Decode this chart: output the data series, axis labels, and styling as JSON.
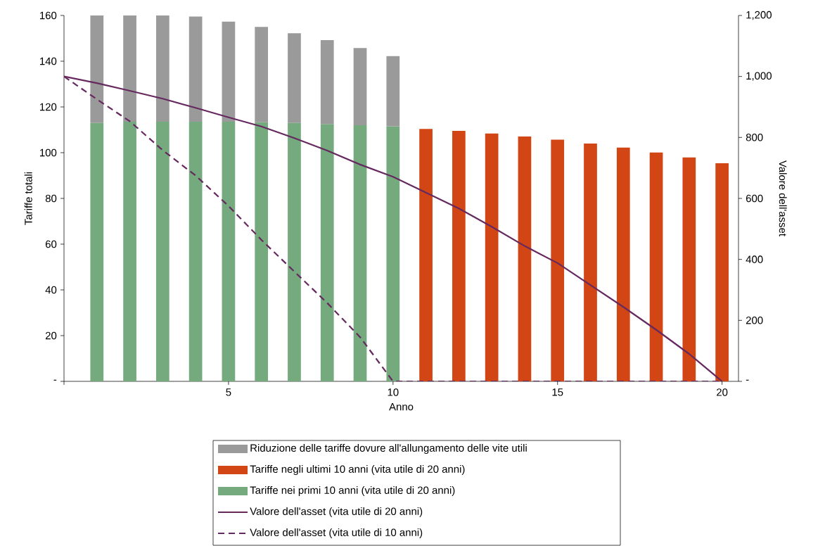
{
  "chart_data": {
    "type": "bar",
    "stacked": true,
    "xlabel": "Anno",
    "ylabel": "Tariffe totali",
    "y2label": "Valore dell'asset",
    "x": [
      1,
      2,
      3,
      4,
      5,
      6,
      7,
      8,
      9,
      10,
      11,
      12,
      13,
      14,
      15,
      16,
      17,
      18,
      19,
      20
    ],
    "xlim": [
      0,
      20.5
    ],
    "xticks": [
      {
        "value": 0,
        "label": null
      },
      5,
      10,
      15,
      20
    ],
    "ylim": [
      0,
      160
    ],
    "yticks": [
      {
        "value": 0,
        "label": "-"
      },
      20,
      40,
      60,
      80,
      100,
      120,
      140,
      160
    ],
    "y2lim": [
      0,
      1200
    ],
    "y2ticks": [
      {
        "value": 0,
        "label": "-"
      },
      200,
      400,
      600,
      800,
      {
        "value": 1000,
        "label": "1,000"
      },
      {
        "value": 1200,
        "label": "1,200"
      }
    ],
    "legend": "bottom",
    "series": [
      {
        "name": "Tariffe nei primi 10 anni (vita utile di 20 anni)",
        "color": "#75a97e",
        "values": [
          113,
          113.5,
          113.5,
          113.5,
          113.5,
          113.3,
          113,
          112.5,
          112,
          111.5,
          null,
          null,
          null,
          null,
          null,
          null,
          null,
          null,
          null,
          null
        ]
      },
      {
        "name": "Tariffe negli ultimi 10 anni (vita utile di 20 anni)",
        "color": "#d24615",
        "values": [
          null,
          null,
          null,
          null,
          null,
          null,
          null,
          null,
          null,
          null,
          110.4,
          109.5,
          108.4,
          107.1,
          105.7,
          104,
          102.2,
          100.1,
          97.9,
          95.4
        ]
      },
      {
        "name": "Riduzione delle tariffe dovure all'allungamento delle vite utili",
        "color": "#9a9a9a",
        "values": [
          47,
          46.5,
          46.5,
          46,
          43.8,
          41.7,
          39.2,
          36.7,
          33.8,
          30.7,
          null,
          null,
          null,
          null,
          null,
          null,
          null,
          null,
          null,
          null
        ]
      },
      {
        "name": "Valore dell'asset (vita utile di 20 anni)",
        "type": "line",
        "axis": "y2",
        "line_style": "solid",
        "color": "#66295f",
        "x": [
          0,
          1,
          2,
          3,
          4,
          5,
          6,
          7,
          8,
          9,
          10,
          11,
          12,
          13,
          14,
          15,
          16,
          17,
          18,
          19,
          20
        ],
        "values": [
          1000,
          978,
          953,
          927,
          897,
          866,
          836,
          798,
          757,
          711,
          671,
          619,
          567,
          507,
          444,
          388,
          316,
          244,
          169,
          90,
          0
        ]
      },
      {
        "name": "Valore dell'asset (vita utile di 10 anni)",
        "type": "line",
        "axis": "y2",
        "line_style": "dashed",
        "color": "#66295f",
        "x": [
          0,
          1,
          2,
          3,
          4,
          5,
          6,
          7,
          8,
          9,
          10,
          11,
          12,
          13,
          14,
          15,
          16,
          17,
          18,
          19,
          20
        ],
        "values": [
          1000,
          925,
          853,
          758,
          675,
          575,
          464,
          360,
          257,
          145,
          0,
          0,
          0,
          0,
          0,
          0,
          0,
          0,
          0,
          0,
          0
        ]
      }
    ]
  }
}
